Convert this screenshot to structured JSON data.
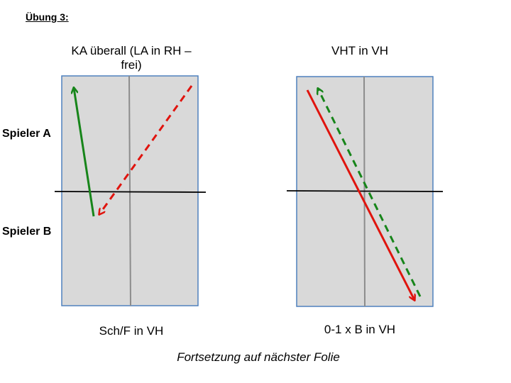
{
  "slide": {
    "title": "Übung 3:",
    "player_a": "Spieler A",
    "player_b": "Spieler B",
    "footer": "Fortsetzung auf nächster Folie"
  },
  "diagrams": [
    {
      "top_caption": "KA überall (LA in RH – frei)",
      "bottom_caption": "Sch/F in VH",
      "strokes": [
        {
          "color": "#e0140e",
          "style": "dashed",
          "from": "right-top",
          "to": "left-middle-lower"
        },
        {
          "color": "#17851a",
          "style": "solid",
          "from": "left-middle-lower",
          "to": "left-top"
        }
      ]
    },
    {
      "top_caption": "VHT in VH",
      "bottom_caption": "0-1 x B in VH",
      "strokes": [
        {
          "color": "#e0140e",
          "style": "solid",
          "from": "left-top",
          "to": "right-bottom"
        },
        {
          "color": "#17851a",
          "style": "dashed",
          "from": "right-bottom",
          "to": "left-top"
        }
      ]
    }
  ],
  "colors": {
    "court_fill": "#d9d9d9",
    "court_border": "#4f81bd",
    "center_line": "#8c8c8c",
    "net": "#000000",
    "red": "#e0140e",
    "green": "#17851a"
  }
}
